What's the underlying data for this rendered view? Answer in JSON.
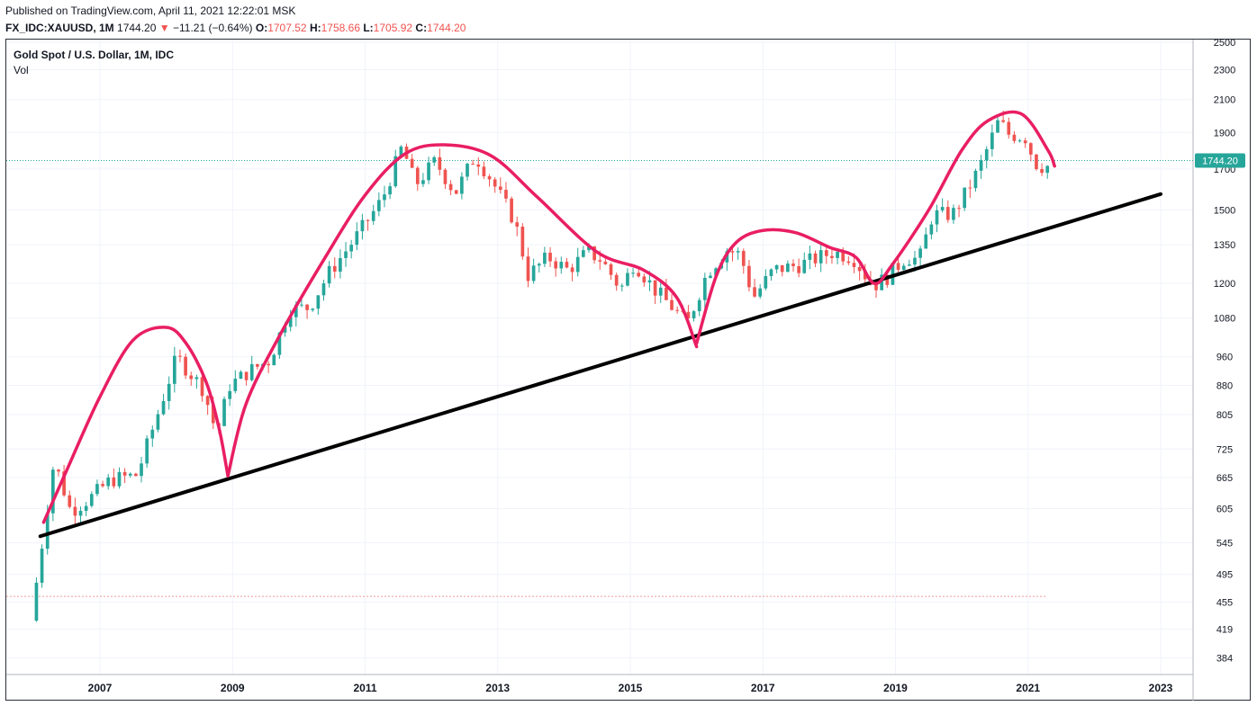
{
  "header": {
    "published": "Published on TradingView.com, April 11, 2021 12:22:01 MSK",
    "symbol": "FX_IDC:XAUUSD, 1M",
    "last": "1744.20",
    "arrow": "▼",
    "change": "−11.21 (−0.64%)",
    "o_label": "O:",
    "o_value": "1707.52",
    "h_label": "H:",
    "h_value": "1758.66",
    "l_label": "L:",
    "l_value": "1705.92",
    "c_label": "C:",
    "c_value": "1744.20"
  },
  "legend": {
    "title": "Gold Spot / U.S. Dollar, 1M, IDC",
    "volume": "Vol"
  },
  "colors": {
    "up": "#26a69a",
    "down": "#ef5350",
    "arc": "#e91e63",
    "trendline": "#000000",
    "price_line": "#26a69a",
    "grid": "#f0f3fa"
  },
  "chart_data": {
    "type": "candlestick",
    "title": "Gold Spot / U.S. Dollar, 1M, IDC",
    "scale": "log",
    "y_ticks": [
      2500,
      2300,
      2100,
      1900,
      1700,
      1500,
      1350,
      1200,
      1080,
      960,
      880,
      805,
      725,
      665,
      605,
      545,
      495,
      455,
      419,
      384
    ],
    "x_ticks": [
      "2007",
      "2009",
      "2011",
      "2013",
      "2015",
      "2017",
      "2019",
      "2021",
      "2023"
    ],
    "current_price": 1744.2,
    "anchors": [
      [
        2006.0,
        430
      ],
      [
        2006.35,
        700
      ],
      [
        2006.6,
        600
      ],
      [
        2006.9,
        625
      ],
      [
        2007.2,
        660
      ],
      [
        2007.6,
        670
      ],
      [
        2007.9,
        800
      ],
      [
        2008.2,
        960
      ],
      [
        2008.6,
        870
      ],
      [
        2008.8,
        760
      ],
      [
        2009.0,
        880
      ],
      [
        2009.3,
        920
      ],
      [
        2009.6,
        950
      ],
      [
        2009.9,
        1110
      ],
      [
        2010.2,
        1115
      ],
      [
        2010.5,
        1240
      ],
      [
        2010.9,
        1380
      ],
      [
        2011.3,
        1550
      ],
      [
        2011.6,
        1820
      ],
      [
        2011.8,
        1620
      ],
      [
        2012.1,
        1740
      ],
      [
        2012.4,
        1580
      ],
      [
        2012.7,
        1770
      ],
      [
        2012.9,
        1670
      ],
      [
        2013.3,
        1450
      ],
      [
        2013.5,
        1230
      ],
      [
        2013.8,
        1300
      ],
      [
        2014.1,
        1250
      ],
      [
        2014.4,
        1320
      ],
      [
        2014.6,
        1290
      ],
      [
        2014.9,
        1180
      ],
      [
        2015.1,
        1280
      ],
      [
        2015.4,
        1180
      ],
      [
        2015.7,
        1110
      ],
      [
        2015.9,
        1060
      ],
      [
        2016.2,
        1240
      ],
      [
        2016.5,
        1330
      ],
      [
        2016.7,
        1310
      ],
      [
        2016.9,
        1150
      ],
      [
        2017.2,
        1250
      ],
      [
        2017.6,
        1270
      ],
      [
        2017.9,
        1300
      ],
      [
        2018.1,
        1320
      ],
      [
        2018.4,
        1300
      ],
      [
        2018.7,
        1190
      ],
      [
        2018.9,
        1220
      ],
      [
        2019.2,
        1300
      ],
      [
        2019.4,
        1290
      ],
      [
        2019.6,
        1480
      ],
      [
        2019.9,
        1480
      ],
      [
        2020.1,
        1580
      ],
      [
        2020.3,
        1700
      ],
      [
        2020.6,
        1970
      ],
      [
        2020.75,
        1890
      ],
      [
        2020.9,
        1880
      ],
      [
        2021.0,
        1870
      ],
      [
        2021.15,
        1730
      ],
      [
        2021.25,
        1715
      ]
    ],
    "trendline": {
      "from": [
        2006.1,
        556
      ],
      "to": [
        2023.0,
        1575
      ]
    },
    "arcs": [
      [
        [
          2006.15,
          580
        ],
        [
          2006.5,
          680
        ],
        [
          2007.0,
          850
        ],
        [
          2007.5,
          1010
        ],
        [
          2008.0,
          1050
        ],
        [
          2008.3,
          1000
        ],
        [
          2008.6,
          890
        ],
        [
          2008.8,
          770
        ],
        [
          2008.93,
          668
        ]
      ],
      [
        [
          2008.93,
          668
        ],
        [
          2009.2,
          830
        ],
        [
          2009.7,
          1020
        ],
        [
          2010.4,
          1300
        ],
        [
          2011.0,
          1570
        ],
        [
          2011.6,
          1780
        ],
        [
          2012.2,
          1830
        ],
        [
          2012.9,
          1770
        ],
        [
          2013.6,
          1560
        ],
        [
          2014.5,
          1320
        ],
        [
          2015.2,
          1250
        ],
        [
          2015.7,
          1150
        ],
        [
          2016.0,
          990
        ]
      ],
      [
        [
          2016.0,
          1000
        ],
        [
          2016.3,
          1230
        ],
        [
          2016.6,
          1360
        ],
        [
          2017.0,
          1410
        ],
        [
          2017.5,
          1400
        ],
        [
          2018.0,
          1340
        ],
        [
          2018.4,
          1300
        ],
        [
          2018.68,
          1200
        ],
        [
          2018.95,
          1270
        ],
        [
          2019.5,
          1500
        ],
        [
          2020.0,
          1800
        ],
        [
          2020.4,
          1970
        ],
        [
          2020.9,
          2010
        ],
        [
          2021.3,
          1800
        ],
        [
          2021.4,
          1715
        ]
      ]
    ]
  }
}
